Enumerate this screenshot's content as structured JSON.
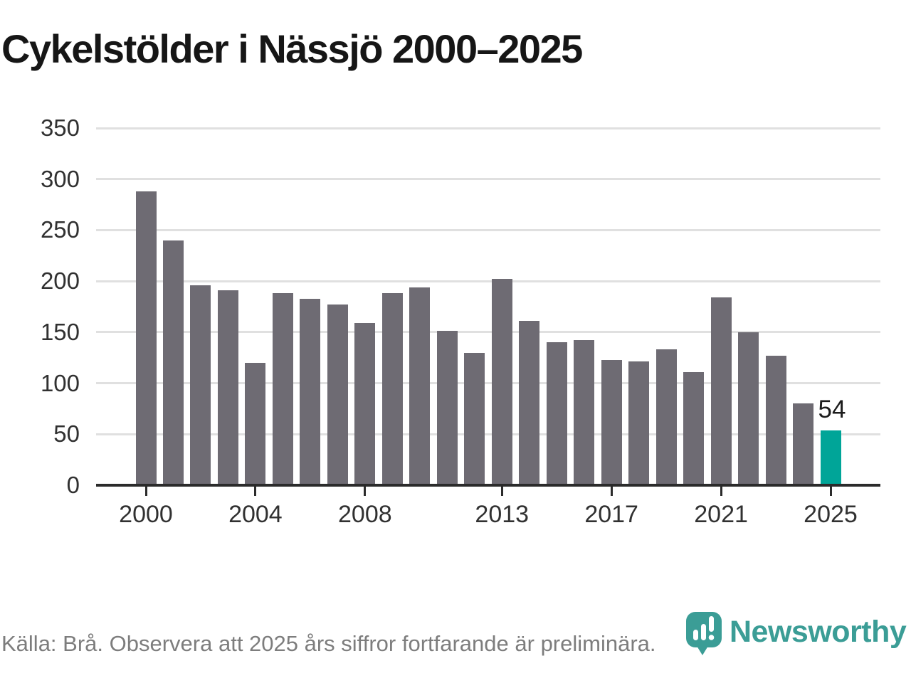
{
  "title": "Cykelstölder i Nässjö 2000–2025",
  "footer": {
    "source_note": "Källa: Brå. Observera att 2025 års siffror fortfarande är preliminära."
  },
  "branding": {
    "name": "Newsworthy",
    "icon": "newsworthy-pin-barchart-icon"
  },
  "colors": {
    "bar": "#6e6b73",
    "highlight": "#00a598",
    "logo_teal": "#3b9d96",
    "grid": "#e0e0e0",
    "axis": "#2b2b2b",
    "title_text": "#161616",
    "tick_text": "#313131",
    "footer_text": "#7d7d7d",
    "value_label_text": "#1c1c1c"
  },
  "chart_data": {
    "type": "bar",
    "title": "Cykelstölder i Nässjö 2000–2025",
    "xlabel": "",
    "ylabel": "",
    "categories": [
      2000,
      2001,
      2002,
      2003,
      2004,
      2005,
      2006,
      2007,
      2008,
      2009,
      2010,
      2011,
      2012,
      2013,
      2014,
      2015,
      2016,
      2017,
      2018,
      2019,
      2020,
      2021,
      2022,
      2023,
      2024,
      2025
    ],
    "values": [
      288,
      240,
      196,
      191,
      120,
      188,
      183,
      177,
      159,
      188,
      194,
      151,
      130,
      202,
      161,
      140,
      142,
      123,
      121,
      133,
      111,
      184,
      150,
      127,
      80,
      54
    ],
    "highlight_index": 25,
    "highlight_label": "54",
    "x_tick_years": [
      2000,
      2004,
      2008,
      2013,
      2017,
      2021,
      2025
    ],
    "x_tick_labels": [
      "2000",
      "2004",
      "2008",
      "2013",
      "2017",
      "2021",
      "2025"
    ],
    "y_ticks": [
      0,
      50,
      100,
      150,
      200,
      250,
      300,
      350
    ],
    "ylim": [
      0,
      350
    ],
    "grid": true,
    "legend": false
  }
}
